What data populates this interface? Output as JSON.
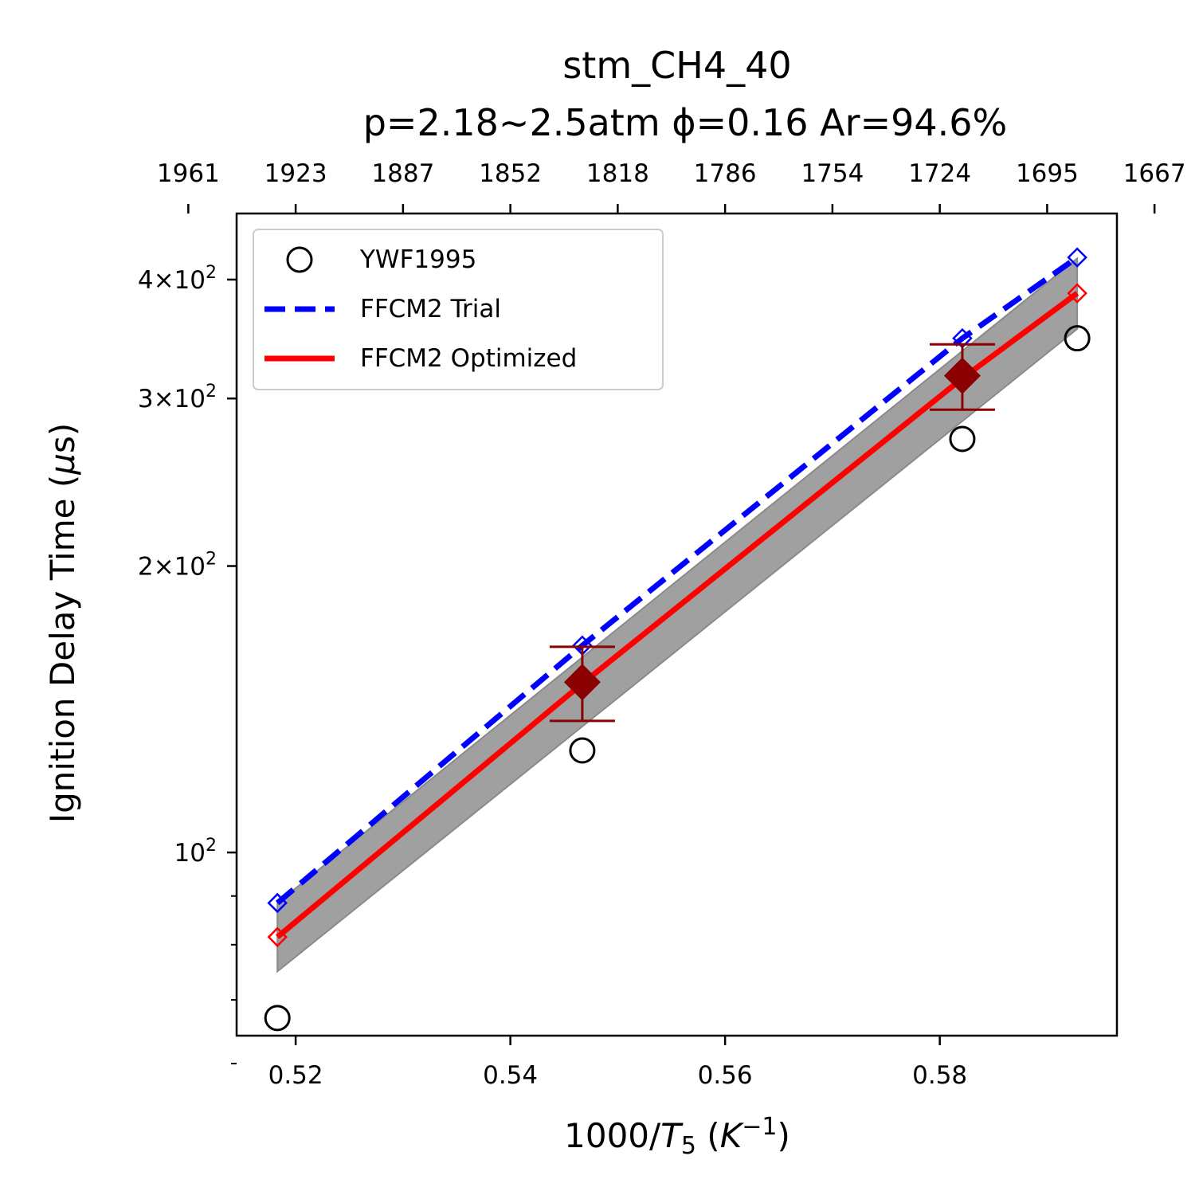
{
  "chart_data": {
    "type": "scatter",
    "title_line1": "stm_CH4_40",
    "title_line2": "p=2.18~2.5atm ϕ=0.16 Ar=94.6%",
    "xlabel_main": "1000/",
    "xlabel_var": "T",
    "xlabel_sub": "5",
    "xlabel_unit_open": " (",
    "xlabel_unit_var": "K",
    "xlabel_unit_sup": "−1",
    "xlabel_unit_close": ")",
    "ylabel_main": "Ignition Delay Time (",
    "ylabel_mu": "μ",
    "ylabel_end": "s)",
    "xlim": [
      0.5145,
      0.5965
    ],
    "ylim_log10": [
      1.8075,
      2.6715
    ],
    "y_scale": "log",
    "grid": false,
    "legend_position": "top-left",
    "x_ticks": [
      {
        "value": 0.52,
        "label": "0.52"
      },
      {
        "value": 0.54,
        "label": "0.54"
      },
      {
        "value": 0.56,
        "label": "0.56"
      },
      {
        "value": 0.58,
        "label": "0.58"
      }
    ],
    "y_ticks": [
      {
        "value": 100,
        "base": "10",
        "exp": "2",
        "mant": ""
      },
      {
        "value": 200,
        "base": "10",
        "exp": "2",
        "mant": "2×"
      },
      {
        "value": 300,
        "base": "10",
        "exp": "2",
        "mant": "3×"
      },
      {
        "value": 400,
        "base": "10",
        "exp": "2",
        "mant": "4×"
      }
    ],
    "y_minor_ticks": [
      60,
      70,
      80,
      90
    ],
    "top_x_ticks": [
      {
        "value": 0.51,
        "label": "1961"
      },
      {
        "value": 0.52,
        "label": "1923"
      },
      {
        "value": 0.53,
        "label": "1887"
      },
      {
        "value": 0.54,
        "label": "1852"
      },
      {
        "value": 0.55,
        "label": "1818"
      },
      {
        "value": 0.56,
        "label": "1786"
      },
      {
        "value": 0.57,
        "label": "1754"
      },
      {
        "value": 0.58,
        "label": "1724"
      },
      {
        "value": 0.59,
        "label": "1695"
      },
      {
        "value": 0.6,
        "label": "1667"
      }
    ],
    "series": [
      {
        "name": "YWF1995",
        "kind": "markers",
        "marker": "open-circle",
        "color": "#000000",
        "x": [
          0.5183,
          0.5467,
          0.5821,
          0.5928
        ],
        "y": [
          67,
          128,
          272,
          347
        ]
      },
      {
        "name": "FFCM2 Trial",
        "kind": "line",
        "style": "dashed",
        "color": "#0000ff",
        "x": [
          0.5183,
          0.5467,
          0.5821,
          0.5928
        ],
        "y": [
          88.5,
          165,
          347,
          422
        ]
      },
      {
        "name": "FFCM2 Optimized",
        "kind": "line",
        "style": "solid",
        "color": "#ff0000",
        "x": [
          0.5183,
          0.5467,
          0.5821,
          0.5928
        ],
        "y": [
          81.5,
          150.5,
          315,
          387
        ]
      }
    ],
    "uncertainty_band": {
      "color": "#a0a0a0",
      "x": [
        0.5183,
        0.5928
      ],
      "upper": [
        88.5,
        421
      ],
      "lower": [
        75,
        355
      ]
    },
    "error_points": {
      "color": "#8b0000",
      "x": [
        0.5467,
        0.5821
      ],
      "y": [
        151,
        317
      ],
      "yerr_low": [
        137.5,
        292
      ],
      "yerr_high": [
        164.5,
        342
      ]
    }
  }
}
